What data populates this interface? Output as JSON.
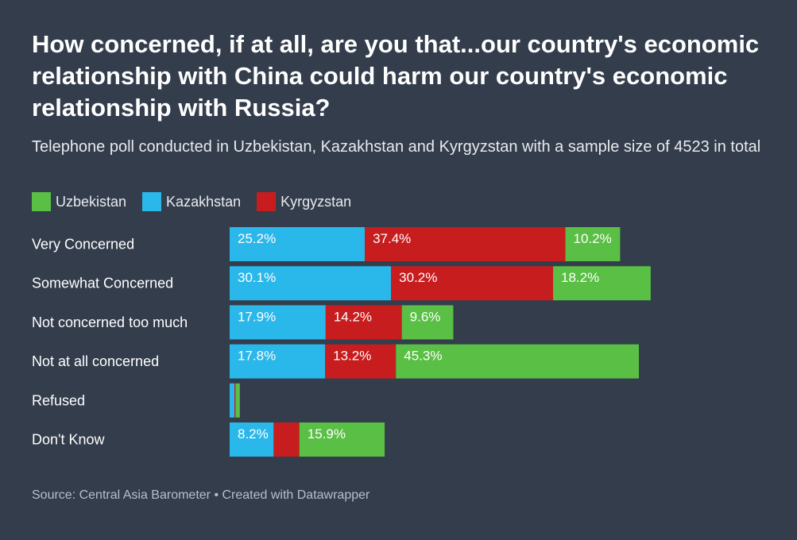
{
  "colors": {
    "Uzbekistan": "#5abf45",
    "Kazakhstan": "#2ab7ea",
    "Kyrgyzstan": "#c81d1e",
    "background": "#333d4c"
  },
  "source": "Source: Central Asia Barometer • Created with Datawrapper",
  "chart_data": {
    "type": "bar",
    "orientation": "horizontal",
    "stacked": true,
    "title": "How concerned, if at all, are you that...our country's economic relationship with China could harm our country's economic relationship with Russia?",
    "subtitle": "Telephone poll conducted in Uzbekistan, Kazakhstan and Kyrgyzstan with a sample size of 4523 in total",
    "legend": [
      "Uzbekistan",
      "Kazakhstan",
      "Kyrgyzstan"
    ],
    "legend_placement": "top-left",
    "categories": [
      "Very Concerned",
      "Somewhat Concerned",
      "Not concerned too much",
      "Not at all concerned",
      "Refused",
      "Don't Know"
    ],
    "series": [
      {
        "name": "Kazakhstan",
        "values": [
          25.2,
          30.1,
          17.9,
          17.8,
          0.9,
          8.2
        ]
      },
      {
        "name": "Kyrgyzstan",
        "values": [
          37.4,
          30.2,
          14.2,
          13.2,
          0.2,
          4.8
        ]
      },
      {
        "name": "Uzbekistan",
        "values": [
          10.2,
          18.2,
          9.6,
          45.3,
          0.8,
          15.9
        ]
      }
    ],
    "grid": false
  }
}
